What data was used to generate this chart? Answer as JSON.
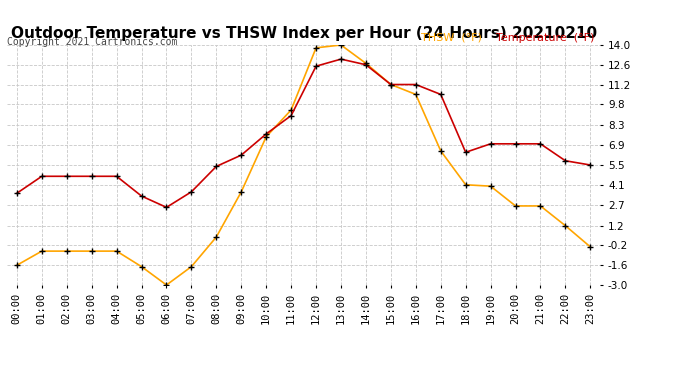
{
  "title": "Outdoor Temperature vs THSW Index per Hour (24 Hours) 20210210",
  "copyright": "Copyright 2021 Cartronics.com",
  "legend_thsw": "THSW  (°F)",
  "legend_temp": "Temperature  (°F)",
  "thsw_color": "#FFA500",
  "temp_color": "#CC0000",
  "hours": [
    "00:00",
    "01:00",
    "02:00",
    "03:00",
    "04:00",
    "05:00",
    "06:00",
    "07:00",
    "08:00",
    "09:00",
    "10:00",
    "11:00",
    "12:00",
    "13:00",
    "14:00",
    "15:00",
    "16:00",
    "17:00",
    "18:00",
    "19:00",
    "20:00",
    "21:00",
    "22:00",
    "23:00"
  ],
  "temperature": [
    3.5,
    4.7,
    4.7,
    4.7,
    4.7,
    3.3,
    2.5,
    3.6,
    5.4,
    6.2,
    7.7,
    9.0,
    12.5,
    13.0,
    12.6,
    11.2,
    11.2,
    10.5,
    6.4,
    7.0,
    7.0,
    7.0,
    5.8,
    5.5
  ],
  "thsw": [
    -1.6,
    -0.6,
    -0.6,
    -0.6,
    -0.6,
    -1.7,
    -3.0,
    -1.7,
    0.4,
    3.6,
    7.5,
    9.4,
    13.8,
    14.0,
    12.7,
    11.2,
    10.5,
    6.5,
    4.1,
    4.0,
    2.6,
    2.6,
    1.2,
    -0.3
  ],
  "ylim": [
    -3.0,
    14.0
  ],
  "yticks": [
    -3.0,
    -1.6,
    -0.2,
    1.2,
    2.7,
    4.1,
    5.5,
    6.9,
    8.3,
    9.8,
    11.2,
    12.6,
    14.0
  ],
  "background_color": "#ffffff",
  "grid_color": "#c8c8c8",
  "title_fontsize": 11,
  "copyright_fontsize": 7,
  "tick_fontsize": 7.5,
  "legend_fontsize": 8,
  "marker": "+",
  "marker_color": "#000000",
  "marker_size": 5,
  "linewidth": 1.2
}
